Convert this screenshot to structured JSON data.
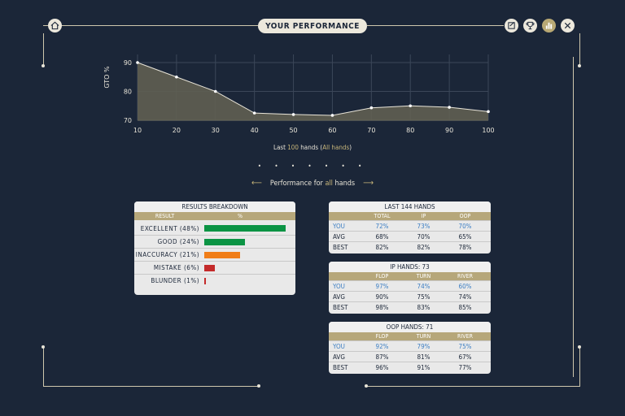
{
  "header": {
    "title": "YOUR PERFORMANCE"
  },
  "icons": [
    "home-icon",
    "notes-icon",
    "trophy-icon",
    "stats-icon",
    "close-icon"
  ],
  "chart_data": {
    "type": "area",
    "ylabel": "GTO %",
    "x": [
      10,
      20,
      30,
      40,
      50,
      60,
      70,
      80,
      90,
      100
    ],
    "values": [
      90,
      85,
      80,
      72.5,
      72,
      71.7,
      74.3,
      75,
      74.5,
      73
    ],
    "xlim": [
      10,
      100
    ],
    "ylim": [
      70,
      90
    ],
    "yticks": [
      70,
      80,
      90
    ],
    "grid": true
  },
  "caption": {
    "pre": "Last ",
    "count": "100",
    "mid": " hands (",
    "scope": "All hands",
    "post": ")"
  },
  "pager": "• • • • • • •",
  "performance_for": {
    "pre": "Performance for ",
    "scope": "all",
    "post": " hands",
    "left_arrow": "⟵",
    "right_arrow": "⟶"
  },
  "results_breakdown": {
    "title": "RESULTS BREAKDOWN",
    "col_result": "RESULT",
    "col_pct": "%",
    "rows": [
      {
        "label": "EXCELLENT (48%)",
        "pct": 48,
        "color": "#0b9444"
      },
      {
        "label": "GOOD (24%)",
        "pct": 24,
        "color": "#0b9444"
      },
      {
        "label": "INACCURACY (21%)",
        "pct": 21,
        "color": "#f07d17"
      },
      {
        "label": "MISTAKE (6%)",
        "pct": 6,
        "color": "#c42a2a"
      },
      {
        "label": "BLUNDER (1%)",
        "pct": 1,
        "color": "#c42a2a"
      }
    ]
  },
  "tables": [
    {
      "title": "LAST 144 HANDS",
      "cols": [
        "TOTAL",
        "IP",
        "OOP"
      ],
      "rows": [
        {
          "label": "YOU",
          "v": [
            "72%",
            "73%",
            "70%"
          ]
        },
        {
          "label": "AVG",
          "v": [
            "68%",
            "70%",
            "65%"
          ]
        },
        {
          "label": "BEST",
          "v": [
            "82%",
            "82%",
            "78%"
          ]
        }
      ]
    },
    {
      "title": "IP HANDS: 73",
      "cols": [
        "FLOP",
        "TURN",
        "RIVER"
      ],
      "rows": [
        {
          "label": "YOU",
          "v": [
            "97%",
            "74%",
            "60%"
          ]
        },
        {
          "label": "AVG",
          "v": [
            "90%",
            "75%",
            "74%"
          ]
        },
        {
          "label": "BEST",
          "v": [
            "98%",
            "83%",
            "85%"
          ]
        }
      ]
    },
    {
      "title": "OOP HANDS: 71",
      "cols": [
        "FLOP",
        "TURN",
        "RIVER"
      ],
      "rows": [
        {
          "label": "YOU",
          "v": [
            "92%",
            "79%",
            "75%"
          ]
        },
        {
          "label": "AVG",
          "v": [
            "87%",
            "81%",
            "67%"
          ]
        },
        {
          "label": "BEST",
          "v": [
            "96%",
            "91%",
            "77%"
          ]
        }
      ]
    }
  ]
}
